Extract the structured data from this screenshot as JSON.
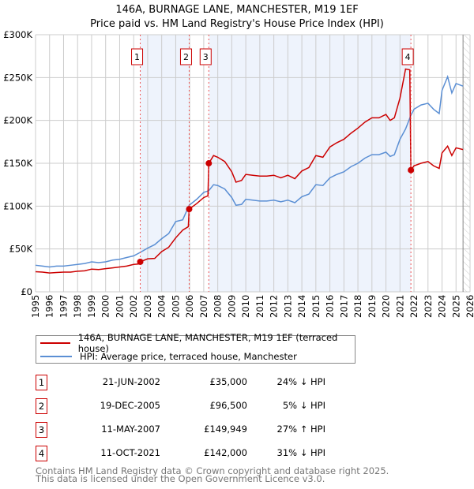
{
  "title": "146A, BURNAGE LANE, MANCHESTER, M19 1EF",
  "subtitle": "Price paid vs. HM Land Registry's House Price Index (HPI)",
  "colors": {
    "property": "#cc0000",
    "hpi": "#5b8fd4",
    "shade": "#eef3fc"
  },
  "chart_data": {
    "type": "line",
    "xlim": [
      1995,
      2026
    ],
    "ylim": [
      0,
      300000
    ],
    "yticks": [
      {
        "v": 0,
        "label": "£0"
      },
      {
        "v": 50000,
        "label": "£50K"
      },
      {
        "v": 100000,
        "label": "£100K"
      },
      {
        "v": 150000,
        "label": "£150K"
      },
      {
        "v": 200000,
        "label": "£200K"
      },
      {
        "v": 250000,
        "label": "£250K"
      },
      {
        "v": 300000,
        "label": "£300K"
      }
    ],
    "xticks": [
      "1995",
      "1996",
      "1997",
      "1998",
      "1999",
      "2000",
      "2001",
      "2002",
      "2003",
      "2004",
      "2005",
      "2006",
      "2007",
      "2008",
      "2009",
      "2010",
      "2011",
      "2012",
      "2013",
      "2014",
      "2015",
      "2016",
      "2017",
      "2018",
      "2019",
      "2020",
      "2021",
      "2022",
      "2023",
      "2024",
      "2025",
      "2026"
    ],
    "projection_from": 2025.5,
    "shaded_ranges": [
      [
        2002.47,
        2005.96
      ],
      [
        2007.36,
        2021.78
      ]
    ],
    "sales": [
      {
        "label": "1",
        "x": 2002.47,
        "y": 35000
      },
      {
        "label": "2",
        "x": 2005.96,
        "y": 96500
      },
      {
        "label": "3",
        "x": 2007.36,
        "y": 149949
      },
      {
        "label": "4",
        "x": 2021.78,
        "y": 142000
      }
    ],
    "series": [
      {
        "name": "146A, BURNAGE LANE, MANCHESTER, M19 1EF (terraced house)",
        "color": "#cc0000",
        "points": [
          [
            1995,
            23.5
          ],
          [
            1995.5,
            23
          ],
          [
            1996,
            22
          ],
          [
            1996.5,
            22.5
          ],
          [
            1997,
            23
          ],
          [
            1997.5,
            23
          ],
          [
            1998,
            24
          ],
          [
            1998.5,
            24.5
          ],
          [
            1999,
            26.5
          ],
          [
            1999.5,
            26
          ],
          [
            2000,
            27
          ],
          [
            2000.5,
            28
          ],
          [
            2001,
            29
          ],
          [
            2001.5,
            30
          ],
          [
            2002,
            32
          ],
          [
            2002.4,
            32.5
          ],
          [
            2002.47,
            35
          ],
          [
            2003,
            38.5
          ],
          [
            2003.5,
            39
          ],
          [
            2004,
            47
          ],
          [
            2004.5,
            52
          ],
          [
            2005,
            63
          ],
          [
            2005.5,
            72
          ],
          [
            2005.9,
            76
          ],
          [
            2005.96,
            96.5
          ],
          [
            2006.5,
            103
          ],
          [
            2007,
            110
          ],
          [
            2007.3,
            112
          ],
          [
            2007.36,
            149.9
          ],
          [
            2007.7,
            159
          ],
          [
            2008,
            157
          ],
          [
            2008.5,
            152
          ],
          [
            2009,
            140
          ],
          [
            2009.3,
            128
          ],
          [
            2009.7,
            130
          ],
          [
            2010,
            137
          ],
          [
            2010.5,
            136
          ],
          [
            2011,
            135
          ],
          [
            2011.5,
            135
          ],
          [
            2012,
            136
          ],
          [
            2012.5,
            133
          ],
          [
            2013,
            136
          ],
          [
            2013.5,
            132
          ],
          [
            2014,
            141
          ],
          [
            2014.5,
            145
          ],
          [
            2015,
            159
          ],
          [
            2015.5,
            157
          ],
          [
            2016,
            169
          ],
          [
            2016.5,
            174
          ],
          [
            2017,
            178
          ],
          [
            2017.5,
            185
          ],
          [
            2018,
            191
          ],
          [
            2018.5,
            198
          ],
          [
            2019,
            203
          ],
          [
            2019.5,
            203
          ],
          [
            2020,
            207
          ],
          [
            2020.3,
            200
          ],
          [
            2020.6,
            203
          ],
          [
            2021,
            226
          ],
          [
            2021.4,
            260
          ],
          [
            2021.7,
            259
          ],
          [
            2021.78,
            142
          ],
          [
            2022,
            147
          ],
          [
            2022.5,
            150
          ],
          [
            2023,
            152
          ],
          [
            2023.4,
            147
          ],
          [
            2023.8,
            144
          ],
          [
            2024,
            162
          ],
          [
            2024.4,
            170
          ],
          [
            2024.7,
            159
          ],
          [
            2025,
            168
          ],
          [
            2025.5,
            166
          ]
        ]
      },
      {
        "name": "HPI: Average price, terraced house, Manchester",
        "color": "#5b8fd4",
        "points": [
          [
            1995,
            31
          ],
          [
            1995.5,
            30
          ],
          [
            1996,
            29
          ],
          [
            1996.5,
            30
          ],
          [
            1997,
            30
          ],
          [
            1997.5,
            31
          ],
          [
            1998,
            32
          ],
          [
            1998.5,
            33
          ],
          [
            1999,
            35
          ],
          [
            1999.5,
            34
          ],
          [
            2000,
            35
          ],
          [
            2000.5,
            37
          ],
          [
            2001,
            38
          ],
          [
            2001.5,
            40
          ],
          [
            2002,
            42
          ],
          [
            2002.47,
            46
          ],
          [
            2003,
            51
          ],
          [
            2003.5,
            55
          ],
          [
            2004,
            62
          ],
          [
            2004.5,
            68
          ],
          [
            2005,
            82
          ],
          [
            2005.5,
            84
          ],
          [
            2005.96,
            101
          ],
          [
            2006.5,
            108
          ],
          [
            2007,
            116
          ],
          [
            2007.36,
            118
          ],
          [
            2007.7,
            125
          ],
          [
            2008,
            124
          ],
          [
            2008.5,
            120
          ],
          [
            2009,
            110
          ],
          [
            2009.3,
            101
          ],
          [
            2009.7,
            102
          ],
          [
            2010,
            108
          ],
          [
            2010.5,
            107
          ],
          [
            2011,
            106
          ],
          [
            2011.5,
            106
          ],
          [
            2012,
            107
          ],
          [
            2012.5,
            105
          ],
          [
            2013,
            107
          ],
          [
            2013.5,
            104
          ],
          [
            2014,
            111
          ],
          [
            2014.5,
            114
          ],
          [
            2015,
            125
          ],
          [
            2015.5,
            124
          ],
          [
            2016,
            133
          ],
          [
            2016.5,
            137
          ],
          [
            2017,
            140
          ],
          [
            2017.5,
            146
          ],
          [
            2018,
            150
          ],
          [
            2018.5,
            156
          ],
          [
            2019,
            160
          ],
          [
            2019.5,
            160
          ],
          [
            2020,
            163
          ],
          [
            2020.3,
            158
          ],
          [
            2020.6,
            160
          ],
          [
            2021,
            178
          ],
          [
            2021.4,
            190
          ],
          [
            2021.78,
            206
          ],
          [
            2022,
            213
          ],
          [
            2022.5,
            218
          ],
          [
            2023,
            220
          ],
          [
            2023.4,
            213
          ],
          [
            2023.8,
            208
          ],
          [
            2024,
            235
          ],
          [
            2024.4,
            251
          ],
          [
            2024.7,
            232
          ],
          [
            2025,
            243
          ],
          [
            2025.5,
            240
          ]
        ]
      }
    ]
  },
  "legend": {
    "property": "146A, BURNAGE LANE, MANCHESTER, M19 1EF (terraced house)",
    "hpi": "HPI: Average price, terraced house, Manchester"
  },
  "transactions": [
    {
      "num": "1",
      "date": "21-JUN-2002",
      "price": "£35,000",
      "hpi": "24% ↓ HPI"
    },
    {
      "num": "2",
      "date": "19-DEC-2005",
      "price": "£96,500",
      "hpi": "5% ↓ HPI"
    },
    {
      "num": "3",
      "date": "11-MAY-2007",
      "price": "£149,949",
      "hpi": "27% ↑ HPI"
    },
    {
      "num": "4",
      "date": "11-OCT-2021",
      "price": "£142,000",
      "hpi": "31% ↓ HPI"
    }
  ],
  "footer": [
    "Contains HM Land Registry data © Crown copyright and database right 2025.",
    "This data is licensed under the Open Government Licence v3.0."
  ]
}
